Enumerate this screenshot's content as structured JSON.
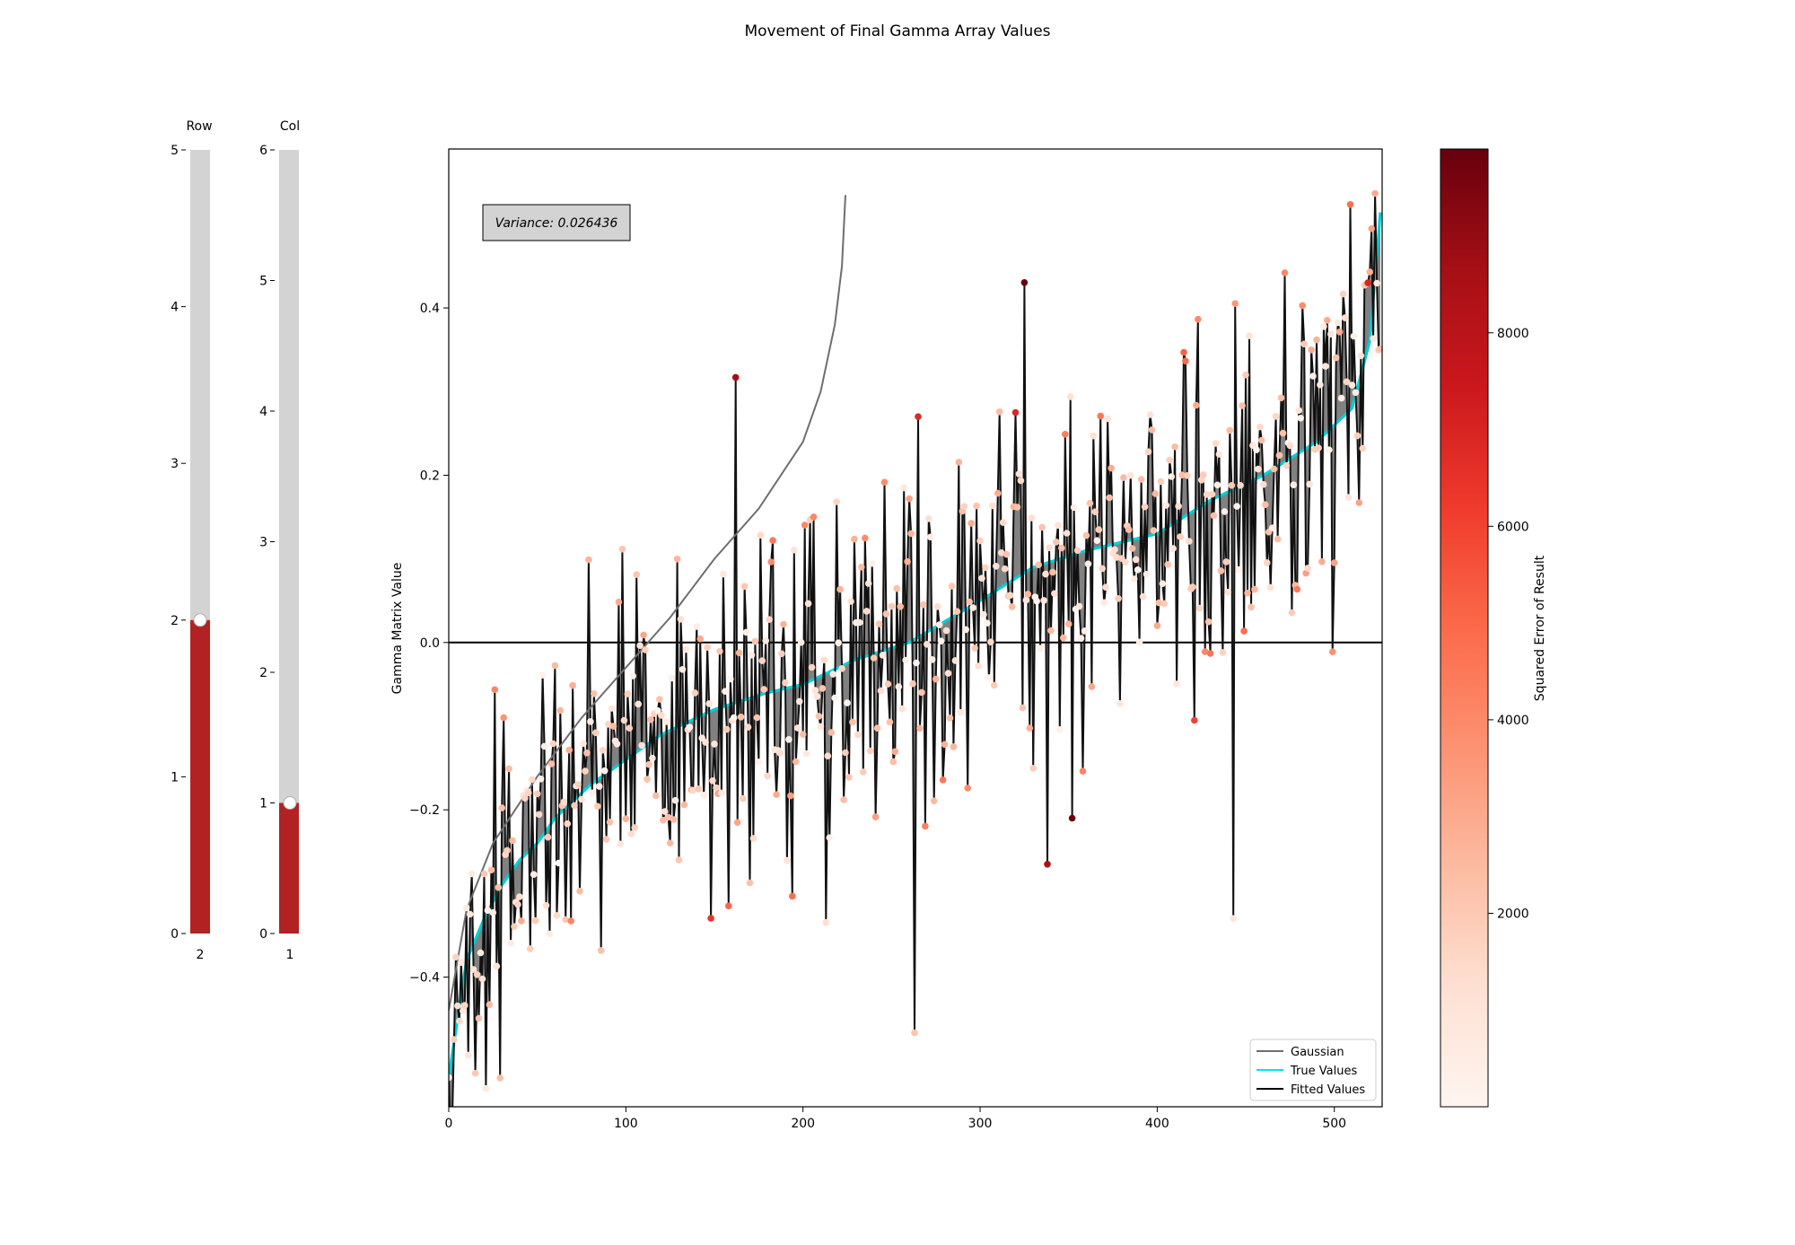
{
  "figure": {
    "title": "Movement of Final Gamma Array Values"
  },
  "sliders": [
    {
      "label": "Row",
      "min": 0,
      "max": 5,
      "value": 2,
      "value_text": "2",
      "ticks": [
        0,
        1,
        2,
        3,
        4,
        5
      ],
      "fill_color": "#b22222",
      "track_color": "#d3d3d3"
    },
    {
      "label": "Col",
      "min": 0,
      "max": 6,
      "value": 1,
      "value_text": "1",
      "ticks": [
        0,
        1,
        2,
        3,
        4,
        5,
        6
      ],
      "fill_color": "#b22222",
      "track_color": "#d3d3d3"
    }
  ],
  "annotation": {
    "text": "Variance: 0.026436"
  },
  "legend": {
    "position": "lower right",
    "entries": [
      {
        "label": "Gaussian",
        "color": "#6e6e6e"
      },
      {
        "label": "True Values",
        "color": "#00e5ee"
      },
      {
        "label": "Fitted Values",
        "color": "#000000"
      }
    ]
  },
  "colorbar": {
    "label": "Squared Error of Result",
    "colormap": "Reds",
    "range": [
      0,
      9900
    ],
    "ticks": [
      2000,
      4000,
      6000,
      8000
    ],
    "tick_labels": [
      "2000",
      "4000",
      "6000",
      "8000"
    ]
  },
  "chart_data": {
    "type": "line",
    "title": "Movement of Final Gamma Array Values",
    "xlabel": "",
    "ylabel": "Gamma Matrix Value",
    "xlim": [
      0,
      527
    ],
    "ylim": [
      -0.555,
      0.59
    ],
    "x_ticks": [
      0,
      100,
      200,
      300,
      400,
      500
    ],
    "y_ticks": [
      -0.4,
      -0.2,
      0.0,
      0.2,
      0.4
    ],
    "y_tick_labels": [
      "−0.4",
      "−0.2",
      "0.0",
      "0.2",
      "0.4"
    ],
    "n_points": 527,
    "grid": false,
    "zero_line": 0,
    "series": [
      {
        "name": "True Values",
        "description": "sorted ascending",
        "x": [
          0,
          5,
          10,
          20,
          30,
          40,
          50,
          60,
          80,
          100,
          120,
          150,
          180,
          200,
          230,
          260,
          300,
          330,
          360,
          400,
          430,
          460,
          490,
          510,
          520,
          527
        ],
        "y": [
          -0.52,
          -0.45,
          -0.38,
          -0.33,
          -0.29,
          -0.26,
          -0.24,
          -0.21,
          -0.17,
          -0.14,
          -0.11,
          -0.08,
          -0.06,
          -0.05,
          -0.02,
          0.0,
          0.05,
          0.09,
          0.11,
          0.13,
          0.17,
          0.2,
          0.24,
          0.28,
          0.36,
          0.54
        ]
      },
      {
        "name": "Gaussian",
        "x": [
          0,
          10,
          25,
          50,
          75,
          100,
          125,
          150,
          175,
          200,
          210,
          218,
          222,
          224
        ],
        "y": [
          -0.44,
          -0.32,
          -0.24,
          -0.16,
          -0.09,
          -0.03,
          0.03,
          0.1,
          0.16,
          0.24,
          0.3,
          0.38,
          0.45,
          0.535
        ]
      },
      {
        "name": "Fitted Values",
        "description": "noisy fit around True Values, points colored by squared error",
        "noise_sd": 0.11,
        "seed": 7
      }
    ],
    "highlighted_points": [
      {
        "x": 162,
        "y": 0.317,
        "error": 8600
      },
      {
        "x": 265,
        "y": 0.27,
        "error": 6800
      },
      {
        "x": 320,
        "y": 0.275,
        "error": 6900
      },
      {
        "x": 338,
        "y": -0.265,
        "error": 8400
      },
      {
        "x": 352,
        "y": -0.21,
        "error": 9800
      },
      {
        "x": 158,
        "y": -0.315,
        "error": 5000
      },
      {
        "x": 443,
        "y": -0.33,
        "error": 900
      },
      {
        "x": 472,
        "y": 0.442,
        "error": 4000
      },
      {
        "x": 519,
        "y": 0.43,
        "error": 7000
      }
    ]
  }
}
